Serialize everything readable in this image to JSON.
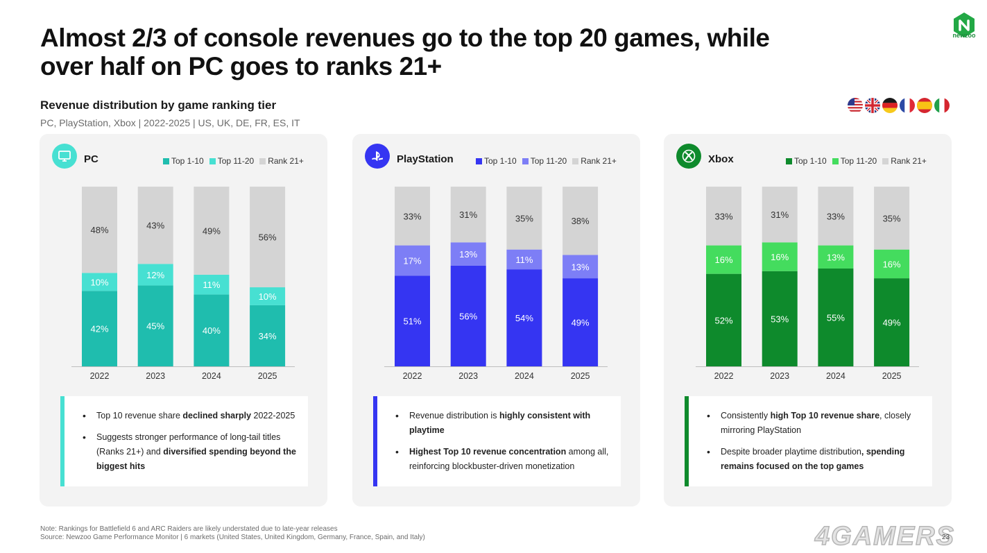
{
  "slide": {
    "title_line1": "Almost 2/3 of console revenues go to the top 20 games, while",
    "title_line2": "over half on PC goes to ranks 21+",
    "subtitle": "Revenue distribution by game ranking tier",
    "scope": "PC, PlayStation, Xbox | 2022-2025 | US, UK, DE, FR, ES, IT",
    "brand": "newzoo",
    "page_number": "23",
    "watermark": "4GAMERS",
    "flags": [
      "us-flag",
      "uk-flag",
      "de-flag",
      "fr-flag",
      "es-flag",
      "it-flag"
    ],
    "note_line": "Note: Rankings for Battlefield 6 and ARC Raiders are likely understated due to late-year releases",
    "source_line": "Source: Newzoo Game Performance Monitor | 6 markets (United States, United Kingdom, Germany, France, Spain, and Italy)"
  },
  "chart_data": [
    {
      "type": "bar",
      "stacked": true,
      "title": "PC",
      "categories": [
        "2022",
        "2023",
        "2024",
        "2025"
      ],
      "series": [
        {
          "name": "Top 1-10",
          "color": "#1fbdae",
          "values": [
            42,
            45,
            40,
            34
          ]
        },
        {
          "name": "Top 11-20",
          "color": "#47e0d2",
          "values": [
            10,
            12,
            11,
            10
          ]
        },
        {
          "name": "Rank 21+",
          "color": "#d4d4d4",
          "values": [
            48,
            43,
            49,
            56
          ]
        }
      ],
      "ylim": [
        0,
        100
      ],
      "unit": "%",
      "accent": "#47e0d2",
      "insights": [
        [
          "Top 10 revenue share ",
          "declined sharply",
          " 2022-2025"
        ],
        [
          "Suggests stronger performance of long-tail titles (Ranks 21+) and ",
          "diversified spending beyond the biggest hits",
          ""
        ]
      ]
    },
    {
      "type": "bar",
      "stacked": true,
      "title": "PlayStation",
      "categories": [
        "2022",
        "2023",
        "2024",
        "2025"
      ],
      "series": [
        {
          "name": "Top 1-10",
          "color": "#3535f2",
          "values": [
            51,
            56,
            54,
            49
          ]
        },
        {
          "name": "Top 11-20",
          "color": "#7d7ef6",
          "values": [
            17,
            13,
            11,
            13
          ]
        },
        {
          "name": "Rank 21+",
          "color": "#d4d4d4",
          "values": [
            33,
            31,
            35,
            38
          ]
        }
      ],
      "ylim": [
        0,
        100
      ],
      "unit": "%",
      "accent": "#3535f2",
      "insights": [
        [
          "Revenue distribution is ",
          "highly consistent with playtime",
          ""
        ],
        [
          "",
          "Highest Top 10 revenue concentration",
          " among all, reinforcing blockbuster-driven monetization"
        ]
      ]
    },
    {
      "type": "bar",
      "stacked": true,
      "title": "Xbox",
      "categories": [
        "2022",
        "2023",
        "2024",
        "2025"
      ],
      "series": [
        {
          "name": "Top 1-10",
          "color": "#0e8a2c",
          "values": [
            52,
            53,
            55,
            49
          ]
        },
        {
          "name": "Top 11-20",
          "color": "#44dc5e",
          "values": [
            16,
            16,
            13,
            16
          ]
        },
        {
          "name": "Rank 21+",
          "color": "#d4d4d4",
          "values": [
            33,
            31,
            33,
            35
          ]
        }
      ],
      "ylim": [
        0,
        100
      ],
      "unit": "%",
      "accent": "#0e8a2c",
      "insights": [
        [
          "Consistently ",
          "high Top 10 revenue share",
          ", closely mirroring PlayStation"
        ],
        [
          "Despite broader playtime distribution",
          ", spending remains focused on the top games",
          ""
        ]
      ]
    }
  ]
}
